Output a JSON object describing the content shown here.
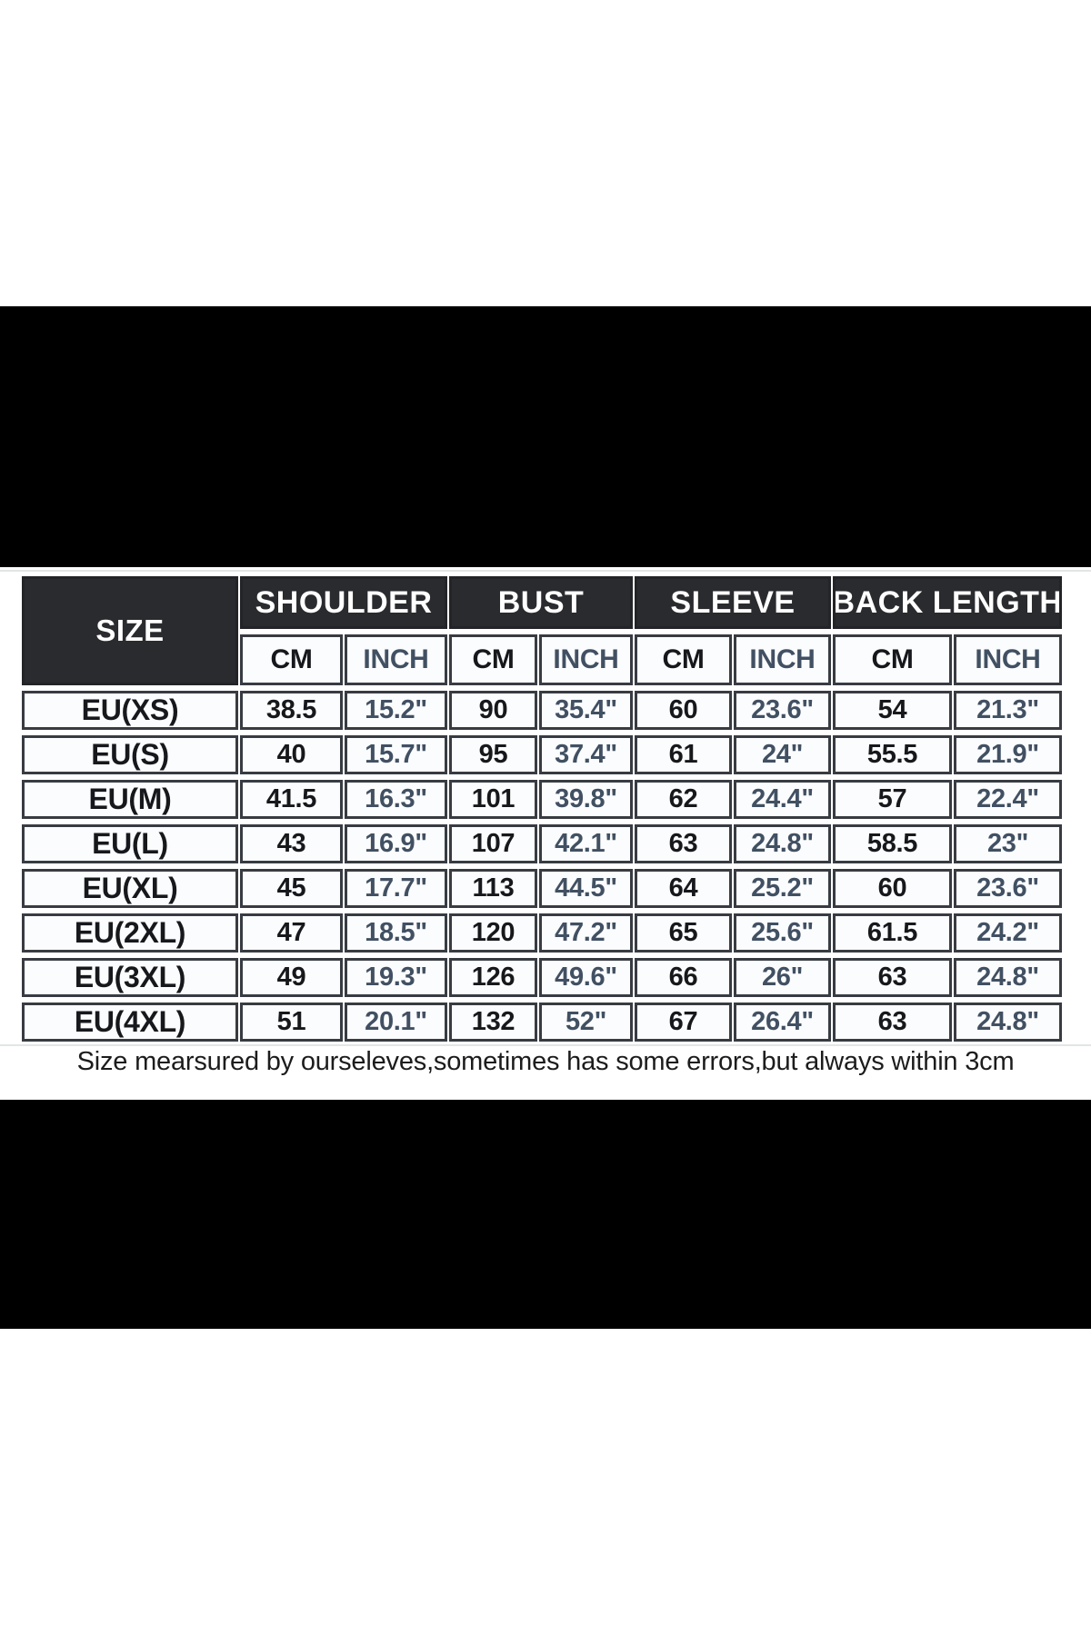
{
  "note": "Size mearsured by ourseleves,sometimes has some errors,but always within 3cm",
  "colors": {
    "page_background": "#ffffff",
    "photo_bar": "#000000",
    "header_background": "#2a2b2e",
    "table_border": "#383c42",
    "cell_background": "#fbfcfd",
    "cm_text": "#16181c",
    "inch_text": "#415062",
    "note_text": "#1c1c1c"
  },
  "chart_data": {
    "type": "table",
    "corner_label": "SIZE",
    "column_groups": [
      "SHOULDER",
      "BUST",
      "SLEEVE",
      "BACK LENGTH"
    ],
    "sub_headers": [
      "CM",
      "INCH",
      "CM",
      "INCH",
      "CM",
      "INCH",
      "CM",
      "INCH"
    ],
    "rows": [
      {
        "size": "EU(XS)",
        "cells": [
          "38.5",
          "15.2\"",
          "90",
          "35.4\"",
          "60",
          "23.6\"",
          "54",
          "21.3\""
        ]
      },
      {
        "size": "EU(S)",
        "cells": [
          "40",
          "15.7\"",
          "95",
          "37.4\"",
          "61",
          "24\"",
          "55.5",
          "21.9\""
        ]
      },
      {
        "size": "EU(M)",
        "cells": [
          "41.5",
          "16.3\"",
          "101",
          "39.8\"",
          "62",
          "24.4\"",
          "57",
          "22.4\""
        ]
      },
      {
        "size": "EU(L)",
        "cells": [
          "43",
          "16.9\"",
          "107",
          "42.1\"",
          "63",
          "24.8\"",
          "58.5",
          "23\""
        ]
      },
      {
        "size": "EU(XL)",
        "cells": [
          "45",
          "17.7\"",
          "113",
          "44.5\"",
          "64",
          "25.2\"",
          "60",
          "23.6\""
        ]
      },
      {
        "size": "EU(2XL)",
        "cells": [
          "47",
          "18.5\"",
          "120",
          "47.2\"",
          "65",
          "25.6\"",
          "61.5",
          "24.2\""
        ]
      },
      {
        "size": "EU(3XL)",
        "cells": [
          "49",
          "19.3\"",
          "126",
          "49.6\"",
          "66",
          "26\"",
          "63",
          "24.8\""
        ]
      },
      {
        "size": "EU(4XL)",
        "cells": [
          "51",
          "20.1\"",
          "132",
          "52\"",
          "67",
          "26.4\"",
          "63",
          "24.8\""
        ]
      }
    ]
  }
}
